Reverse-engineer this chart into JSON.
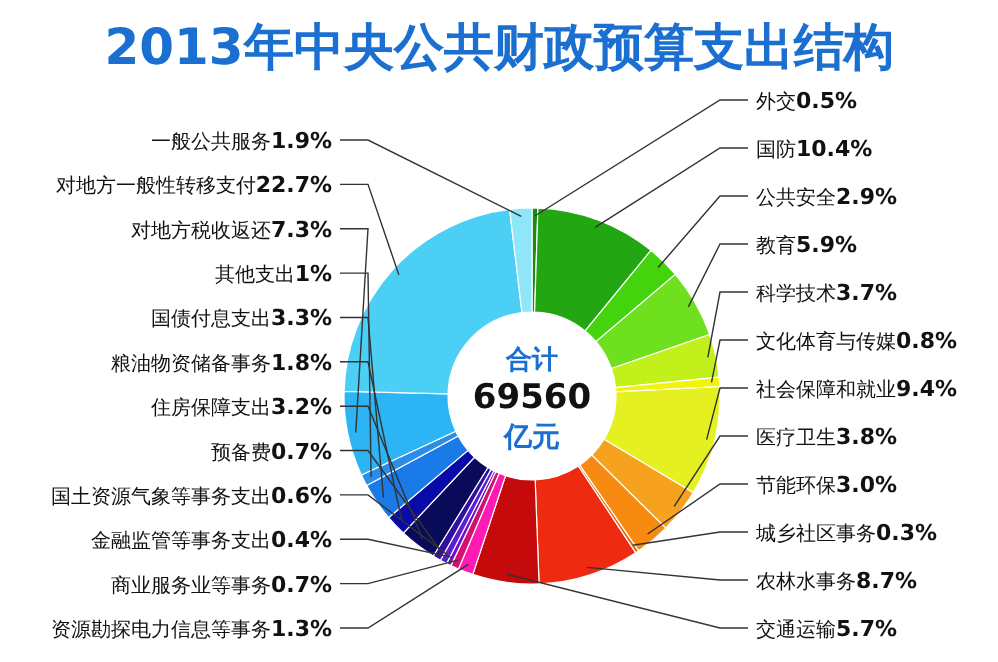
{
  "chart_data": {
    "type": "donut",
    "title": "2013年中央公共财政预算支出结构",
    "categories": [
      "外交",
      "国防",
      "公共安全",
      "教育",
      "科学技术",
      "文化体育与传媒",
      "社会保障和就业",
      "医疗卫生",
      "节能环保",
      "城乡社区事务",
      "农林水事务",
      "交通运输",
      "资源勘探电力信息等事务",
      "商业服务业等事务",
      "金融监管等事务支出",
      "国土资源气象等事务支出",
      "预备费",
      "住房保障支出",
      "粮油物资储备事务",
      "国债付息支出",
      "其他支出",
      "对地方税收返还",
      "对地方一般性转移支付",
      "一般公共服务"
    ],
    "values": [
      0.5,
      10.4,
      2.9,
      5.9,
      3.7,
      0.8,
      9.4,
      3.8,
      3.0,
      0.3,
      8.7,
      5.7,
      1.3,
      0.7,
      0.4,
      0.6,
      0.7,
      3.2,
      1.8,
      3.3,
      1,
      7.3,
      22.7,
      1.9
    ],
    "value_labels": [
      "0.5%",
      "10.4%",
      "2.9%",
      "5.9%",
      "3.7%",
      "0.8%",
      "9.4%",
      "3.8%",
      "3.0%",
      "0.3%",
      "8.7%",
      "5.7%",
      "1.3%",
      "0.7%",
      "0.4%",
      "0.6%",
      "0.7%",
      "3.2%",
      "1.8%",
      "3.3%",
      "1%",
      "7.3%",
      "22.7%",
      "1.9%"
    ],
    "colors": [
      "#1a8a1a",
      "#22a612",
      "#44d40e",
      "#6ee01e",
      "#c2f01a",
      "#f2f20a",
      "#e4f020",
      "#f7a21e",
      "#f78a10",
      "#e86a10",
      "#ee2a10",
      "#c40a0a",
      "#ff1ab4",
      "#d4106e",
      "#6a10c8",
      "#5a20d0",
      "#3010a0",
      "#0a0a5a",
      "#0a0aa8",
      "#1a7ae8",
      "#2a8ee8",
      "#2cb4f4",
      "#4ccff4",
      "#8ee6f8"
    ],
    "annotations": [
      "合计",
      "69560",
      "亿元"
    ]
  }
}
